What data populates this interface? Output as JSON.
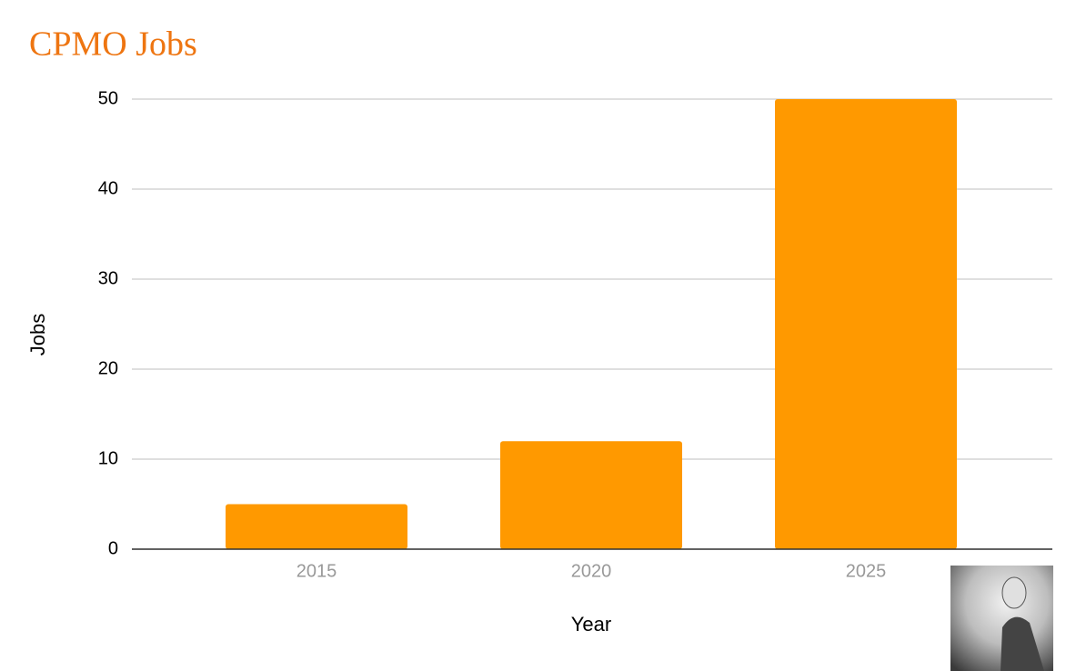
{
  "chart_data": {
    "type": "bar",
    "title": "CPMO Jobs",
    "categories": [
      "2015",
      "2020",
      "2025"
    ],
    "values": [
      5,
      12,
      50
    ],
    "color": "#ff9900",
    "x_label": "Year",
    "y_label": "Jobs",
    "ylim": [
      0,
      50
    ],
    "yticks": [
      0,
      10,
      20,
      30,
      40,
      50
    ],
    "grid": true
  }
}
